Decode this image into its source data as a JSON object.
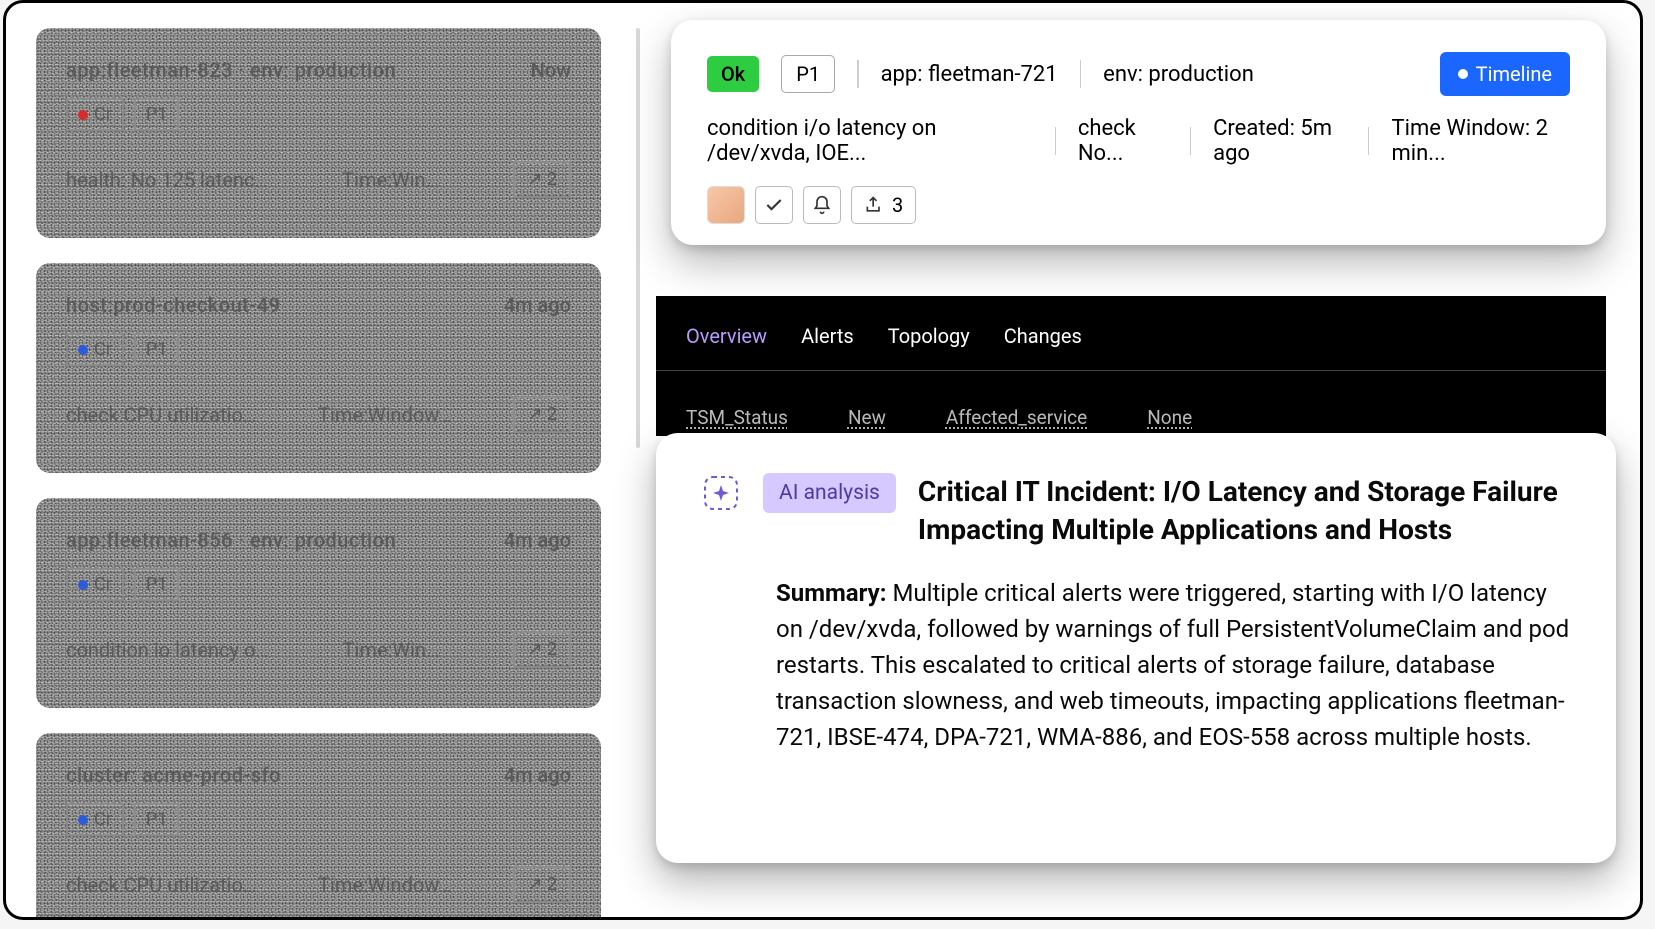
{
  "left_cards": [
    {
      "title": "app:fleetman-823 · env: production",
      "time": "Now",
      "dot_color": "red",
      "badge1": "Cr",
      "badge2": "P1",
      "line2a": "health: No 125 latenc…",
      "line2b": "Time:Win…",
      "btn": "↗ 2"
    },
    {
      "title": "host:prod-checkout-49",
      "time": "4m ago",
      "dot_color": "blue",
      "badge1": "Cr",
      "badge2": "P1",
      "line2a": "check:CPU utilizatio…",
      "line2b": "Time:Window…",
      "btn": "↗ 2"
    },
    {
      "title": "app:fleetman-856 · env: production",
      "time": "4m ago",
      "dot_color": "blue",
      "badge1": "Cr",
      "badge2": "P1",
      "line2a": "condition io latency o…",
      "line2b": "Time:Win…",
      "btn": "↗ 2"
    },
    {
      "title": "cluster: acme-prod-sfo",
      "time": "4m ago",
      "dot_color": "blue",
      "badge1": "Cr",
      "badge2": "P1",
      "line2a": "check:CPU utilizatio…",
      "line2b": "Time:Window…",
      "btn": "↗ 2"
    }
  ],
  "alert": {
    "status": "Ok",
    "priority": "P1",
    "app": "app: fleetman-721",
    "env": "env: production",
    "timeline_label": "Timeline",
    "condition": "condition i/o latency on /dev/xvda, IOE...",
    "check": "check No...",
    "created": "Created: 5m ago",
    "timewindow": "Time Window: 2 min...",
    "share_count": "3"
  },
  "tabs": {
    "items": [
      "Overview",
      "Alerts",
      "Topology",
      "Changes"
    ],
    "active_index": 0
  },
  "meta": {
    "col1a": "TSM_Status",
    "col1b": "New",
    "col2a": "Affected_service",
    "col2b": "None"
  },
  "ai": {
    "badge": "AI analysis",
    "title": "Critical IT Incident: I/O Latency and Storage Failure Impacting Multiple Applications and Hosts",
    "summary_label": "Summary:",
    "summary_body": " Multiple critical alerts were triggered, starting with I/O latency on /dev/xvda, followed by warnings of full PersistentVolumeClaim and pod restarts. This escalated to critical alerts of storage failure, database transaction slowness, and web timeouts, impacting applications fleetman-721, IBSE-474, DPA-721, WMA-886, and EOS-558 across multiple hosts."
  },
  "colors": {
    "ok_bg": "#2ecc40",
    "timeline_bg": "#1a66ff",
    "ai_badge_bg": "#d6c9ff",
    "ai_icon": "#6b5bd9"
  }
}
